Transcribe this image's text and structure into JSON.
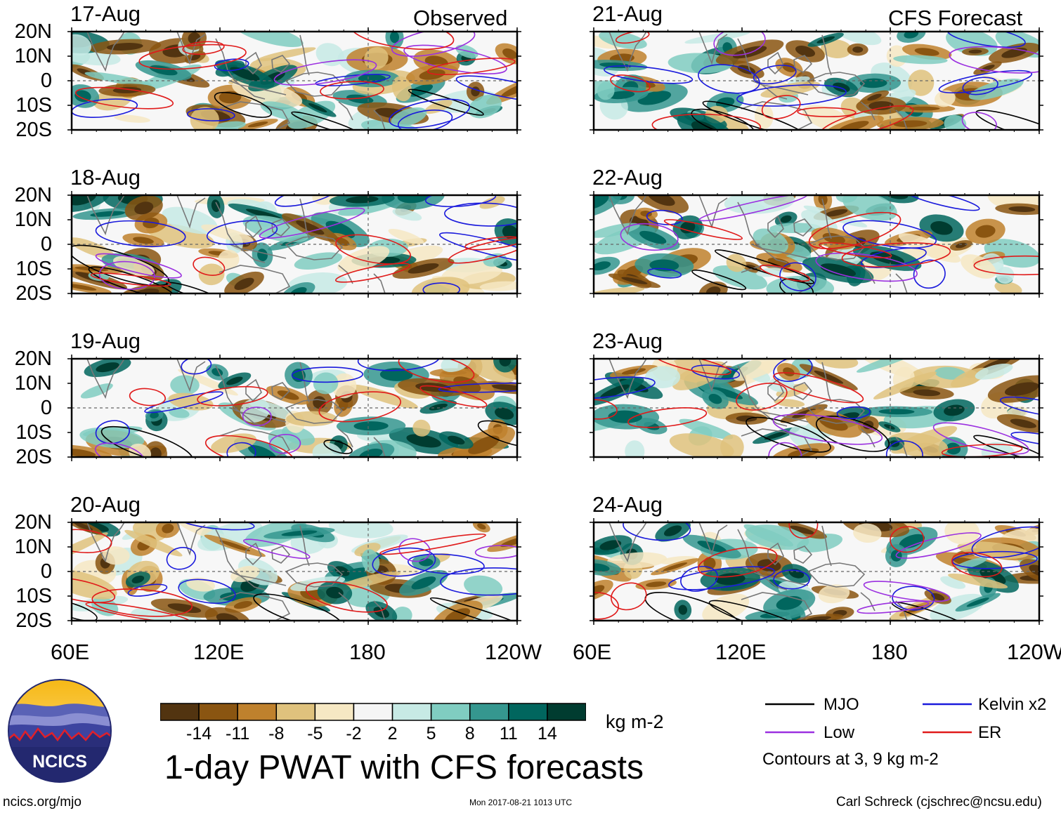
{
  "headers": {
    "observed": "Observed",
    "forecast": "CFS Forecast"
  },
  "panels": [
    {
      "date": "17-Aug",
      "group": "observed"
    },
    {
      "date": "18-Aug",
      "group": "observed"
    },
    {
      "date": "19-Aug",
      "group": "observed"
    },
    {
      "date": "20-Aug",
      "group": "observed"
    },
    {
      "date": "21-Aug",
      "group": "forecast"
    },
    {
      "date": "22-Aug",
      "group": "forecast"
    },
    {
      "date": "23-Aug",
      "group": "forecast"
    },
    {
      "date": "24-Aug",
      "group": "forecast"
    }
  ],
  "lat_labels": [
    "20N",
    "10N",
    "0",
    "10S",
    "20S"
  ],
  "lon_labels": [
    "60E",
    "120E",
    "180",
    "120W"
  ],
  "colorbar": {
    "labels": [
      "-14",
      "-11",
      "-8",
      "-5",
      "-2",
      "2",
      "5",
      "8",
      "11",
      "14"
    ],
    "colors": [
      "#523410",
      "#8a5511",
      "#bf812d",
      "#dfc27d",
      "#f6e8c3",
      "#f5f5f5",
      "#c7eae5",
      "#80cdc1",
      "#35978f",
      "#01665e",
      "#003c30"
    ],
    "units": "kg m-2"
  },
  "title": "1-day PWAT with CFS forecasts",
  "legend": {
    "items": [
      {
        "label": "MJO",
        "color": "#000000"
      },
      {
        "label": "Kelvin x2",
        "color": "#1a1adc"
      },
      {
        "label": "Low",
        "color": "#9b30e0"
      },
      {
        "label": "ER",
        "color": "#e01a1a"
      }
    ],
    "note": "Contours at 3, 9 kg m-2"
  },
  "footer": {
    "url": "ncics.org/mjo",
    "timestamp": "Mon 2017-08-21 1013 UTC",
    "author": "Carl Schreck (cjschrec@ncsu.edu)"
  },
  "logo": {
    "text": "NCICS"
  },
  "colors": {
    "coast": "#777777",
    "dash": "#666666"
  }
}
